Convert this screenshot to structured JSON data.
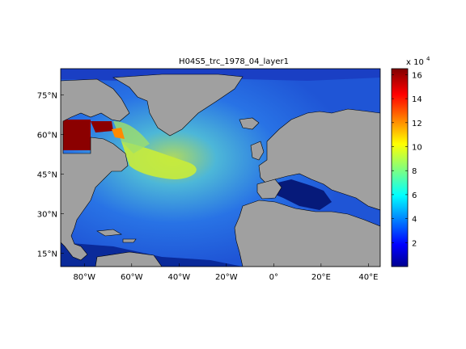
{
  "title": "H04S5_trc_1978_04_layer1",
  "map": {
    "lon_range": [
      -90,
      45
    ],
    "lat_range": [
      10,
      85
    ],
    "lon_ticks": [
      {
        "label": "80°W",
        "value": -80
      },
      {
        "label": "60°W",
        "value": -60
      },
      {
        "label": "40°W",
        "value": -40
      },
      {
        "label": "20°W",
        "value": -20
      },
      {
        "label": "0°",
        "value": 0
      },
      {
        "label": "20°E",
        "value": 20
      },
      {
        "label": "40°E",
        "value": 40
      }
    ],
    "lat_ticks": [
      {
        "label": "75°N",
        "value": 75
      },
      {
        "label": "60°N",
        "value": 60
      },
      {
        "label": "45°N",
        "value": 45
      },
      {
        "label": "30°N",
        "value": 30
      },
      {
        "label": "15°N",
        "value": 15
      }
    ],
    "land_color": "#a0a0a0",
    "coast_color": "#000000"
  },
  "colorbar": {
    "exponent_label": "x 10",
    "exponent_power": "4",
    "range": [
      0,
      16.5
    ],
    "ticks": [
      "2",
      "4",
      "6",
      "8",
      "10",
      "12",
      "14",
      "16"
    ],
    "tick_values": [
      2,
      4,
      6,
      8,
      10,
      12,
      14,
      16
    ],
    "colormap": "jet"
  }
}
